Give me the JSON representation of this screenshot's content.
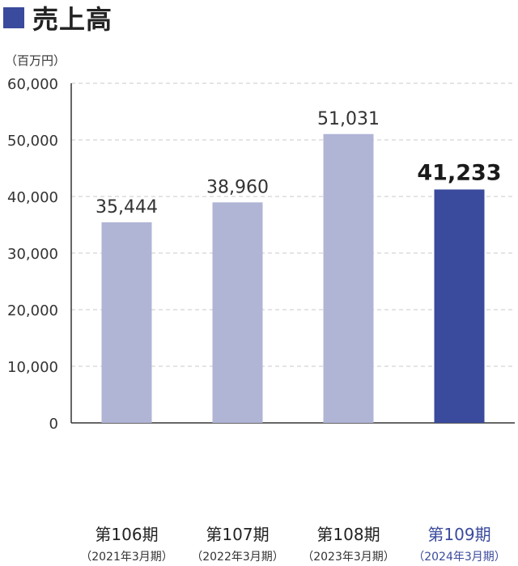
{
  "title": "売上高",
  "unit_label": "（百万円）",
  "colors": {
    "accent": "#3a4a9c",
    "bar": "#b0b5d6",
    "bar_highlight": "#3a4a9c",
    "grid": "#c8c8c8",
    "axis": "#333333"
  },
  "chart_data": {
    "type": "bar",
    "title": "売上高",
    "ylabel": "（百万円）",
    "ylim": [
      0,
      60000
    ],
    "yticks": [
      "0",
      "10,000",
      "20,000",
      "30,000",
      "40,000",
      "50,000",
      "60,000"
    ],
    "categories": [
      {
        "period": "第106期",
        "year": "（2021年3月期）"
      },
      {
        "period": "第107期",
        "year": "（2022年3月期）"
      },
      {
        "period": "第108期",
        "year": "（2023年3月期）"
      },
      {
        "period": "第109期",
        "year": "（2024年3月期）"
      }
    ],
    "values": [
      35444,
      38960,
      51031,
      41233
    ],
    "value_labels": [
      "35,444",
      "38,960",
      "51,031",
      "41,233"
    ],
    "highlight_index": 3,
    "grid": true
  }
}
